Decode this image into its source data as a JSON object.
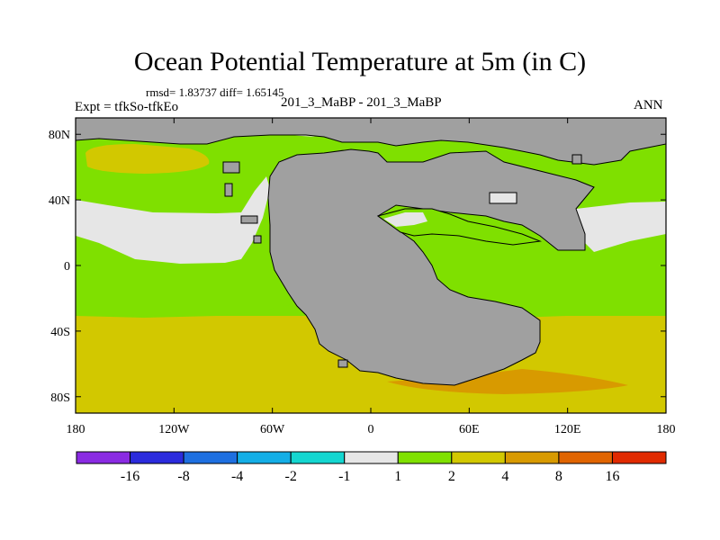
{
  "title": "Ocean Potential Temperature at 5m (in C)",
  "stats": "rmsd= 1.83737   diff= 1.65145",
  "experiment": "Expt = tfkSo-tfkEo",
  "case_label": "201_3_MaBP - 201_3_MaBP",
  "season": "ANN",
  "lat_ticks": [
    {
      "value": 80,
      "label": "80N"
    },
    {
      "value": 40,
      "label": "40N"
    },
    {
      "value": 0,
      "label": "0"
    },
    {
      "value": -40,
      "label": "40S"
    },
    {
      "value": -80,
      "label": "80S"
    }
  ],
  "lon_ticks": [
    {
      "value": -180,
      "label": "180"
    },
    {
      "value": -120,
      "label": "120W"
    },
    {
      "value": -60,
      "label": "60W"
    },
    {
      "value": 0,
      "label": "0"
    },
    {
      "value": 60,
      "label": "60E"
    },
    {
      "value": 120,
      "label": "120E"
    },
    {
      "value": 180,
      "label": "180"
    }
  ],
  "colorbar": {
    "colors": [
      "#8a2be2",
      "#2b2bdc",
      "#1e6fe0",
      "#14aee6",
      "#14d6d0",
      "#e6e6e6",
      "#7fe000",
      "#d2c800",
      "#d89a00",
      "#e06400",
      "#e02a00"
    ],
    "labels": [
      "-16",
      "-8",
      "-4",
      "-2",
      "-1",
      "1",
      "2",
      "4",
      "8",
      "16"
    ]
  },
  "colors": {
    "land": "#a0a0a0",
    "grey_bin": "#e6e6e6",
    "green_bin": "#7fe000",
    "olive_bin": "#d2c800",
    "orange_bin": "#d89a00"
  }
}
